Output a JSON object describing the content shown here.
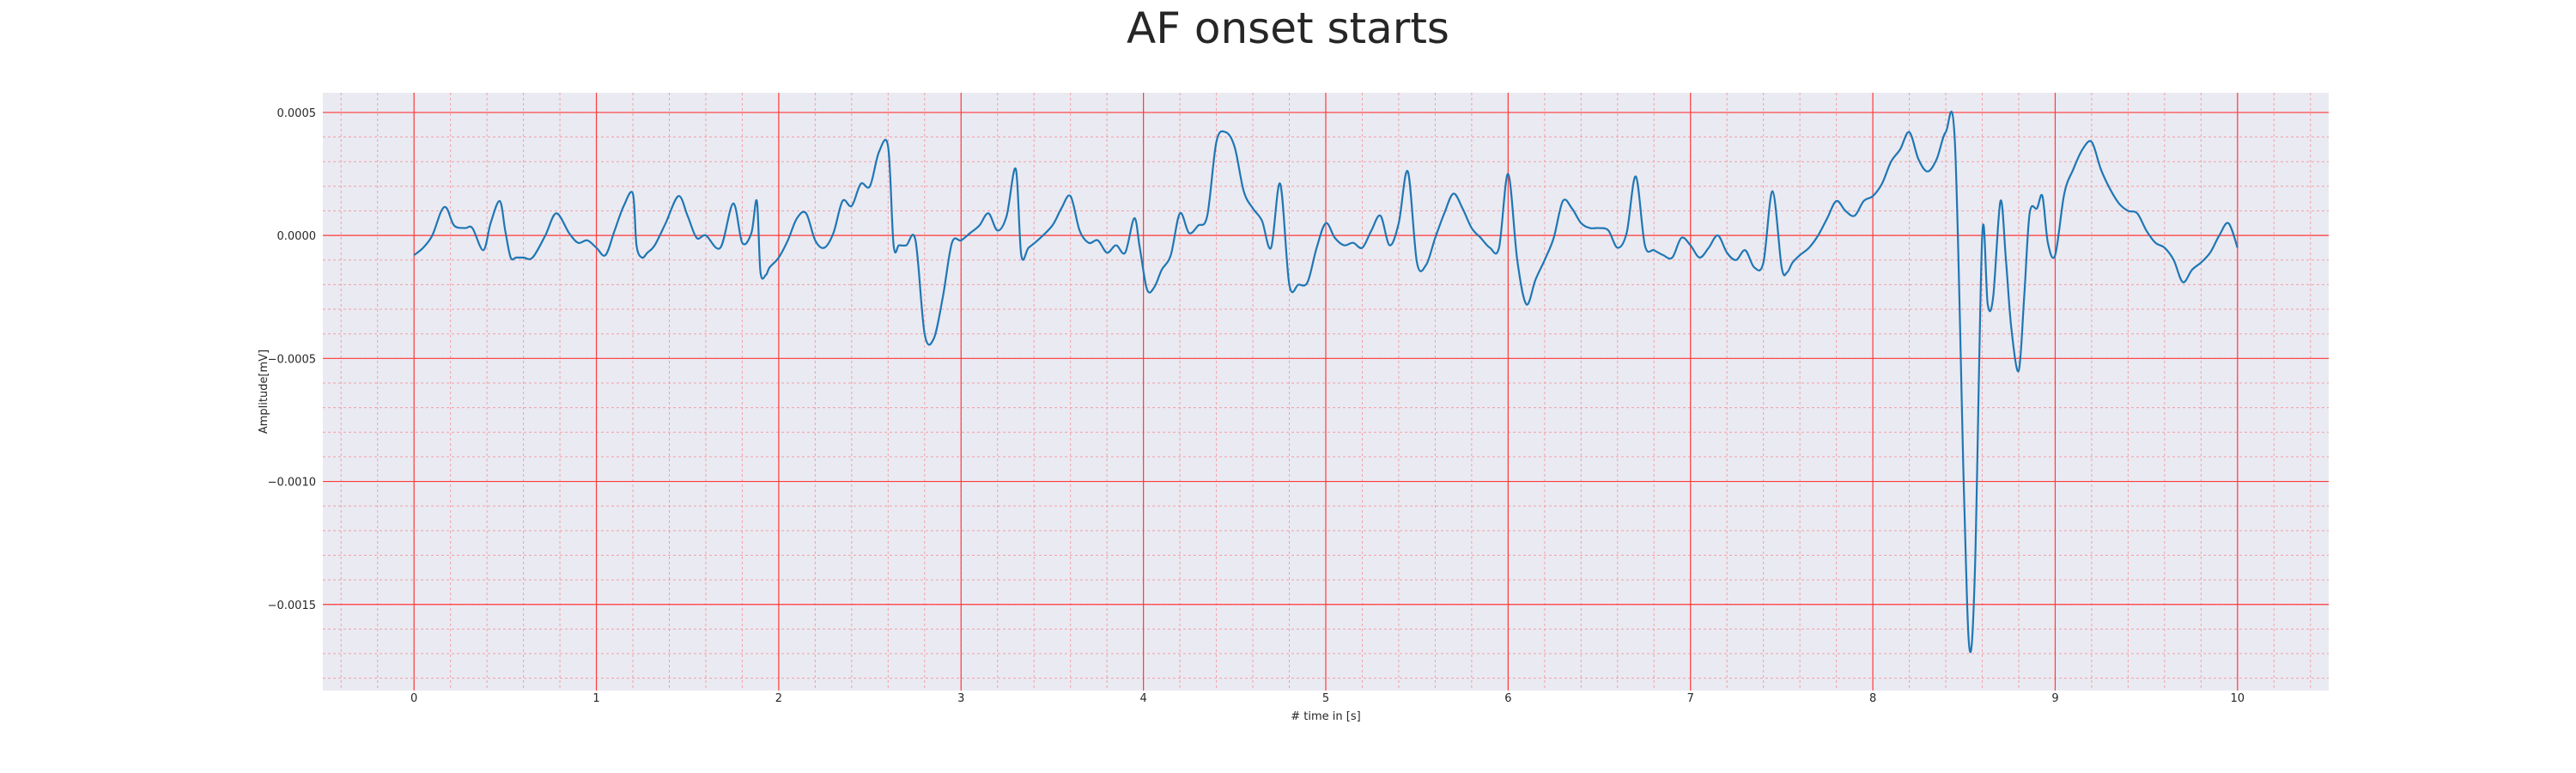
{
  "chart_data": {
    "type": "line",
    "title": "AF onset starts",
    "xlabel": "# time in [s]",
    "ylabel": "Amplitude[mV]",
    "xlim": [
      -0.5,
      10.5
    ],
    "ylim": [
      -0.00185,
      0.00058
    ],
    "x_ticks": [
      0,
      1,
      2,
      3,
      4,
      5,
      6,
      7,
      8,
      9,
      10
    ],
    "x_tick_labels": [
      "0",
      "1",
      "2",
      "3",
      "4",
      "5",
      "6",
      "7",
      "8",
      "9",
      "10"
    ],
    "y_ticks": [
      0.0005,
      0.0,
      -0.0005,
      -0.001,
      -0.0015
    ],
    "y_tick_labels": [
      "0.0005",
      "0.0000",
      "−0.0005",
      "−0.0010",
      "−0.0015"
    ],
    "grid": true,
    "minor_grid": true,
    "colors": {
      "line": "#1f77b4",
      "major_grid": "#ff3b3b",
      "minor_grid": "#f2a0a6",
      "plot_background": "#eaeaf2"
    },
    "series": [
      {
        "x": [
          0.0,
          0.05,
          0.1,
          0.15,
          0.18,
          0.22,
          0.28,
          0.32,
          0.38,
          0.42,
          0.47,
          0.5,
          0.53,
          0.56,
          0.6,
          0.65,
          0.72,
          0.78,
          0.85,
          0.9,
          0.95,
          1.0,
          1.05,
          1.1,
          1.15,
          1.2,
          1.22,
          1.25,
          1.28,
          1.32,
          1.38,
          1.45,
          1.5,
          1.55,
          1.6,
          1.68,
          1.75,
          1.8,
          1.85,
          1.88,
          1.9,
          1.93,
          1.95,
          2.0,
          2.05,
          2.1,
          2.15,
          2.2,
          2.25,
          2.3,
          2.35,
          2.4,
          2.45,
          2.5,
          2.55,
          2.6,
          2.63,
          2.66,
          2.7,
          2.75,
          2.8,
          2.85,
          2.9,
          2.95,
          3.0,
          3.05,
          3.1,
          3.15,
          3.2,
          3.25,
          3.3,
          3.33,
          3.37,
          3.42,
          3.5,
          3.55,
          3.6,
          3.65,
          3.7,
          3.75,
          3.8,
          3.85,
          3.9,
          3.95,
          3.98,
          4.02,
          4.06,
          4.1,
          4.15,
          4.2,
          4.25,
          4.3,
          4.35,
          4.4,
          4.45,
          4.5,
          4.55,
          4.6,
          4.65,
          4.7,
          4.75,
          4.8,
          4.85,
          4.9,
          4.95,
          5.0,
          5.05,
          5.1,
          5.15,
          5.2,
          5.25,
          5.3,
          5.35,
          5.4,
          5.45,
          5.5,
          5.55,
          5.6,
          5.65,
          5.7,
          5.75,
          5.8,
          5.85,
          5.9,
          5.95,
          6.0,
          6.05,
          6.1,
          6.15,
          6.2,
          6.25,
          6.3,
          6.35,
          6.4,
          6.45,
          6.5,
          6.55,
          6.6,
          6.65,
          6.7,
          6.75,
          6.8,
          6.85,
          6.9,
          6.95,
          7.0,
          7.05,
          7.1,
          7.15,
          7.2,
          7.25,
          7.3,
          7.35,
          7.4,
          7.45,
          7.5,
          7.53,
          7.56,
          7.6,
          7.65,
          7.7,
          7.75,
          7.8,
          7.85,
          7.9,
          7.95,
          8.0,
          8.05,
          8.1,
          8.15,
          8.2,
          8.25,
          8.3,
          8.35,
          8.4,
          8.45,
          8.5,
          8.53,
          8.56,
          8.6,
          8.63,
          8.66,
          8.7,
          8.73,
          8.76,
          8.8,
          8.83,
          8.86,
          8.9,
          8.93,
          8.96,
          9.0,
          9.05,
          9.1,
          9.15,
          9.2,
          9.25,
          9.3,
          9.35,
          9.4,
          9.45,
          9.5,
          9.55,
          9.6,
          9.65,
          9.7,
          9.75,
          9.8,
          9.85,
          9.9,
          9.95,
          10.0
        ],
        "y": [
          -8e-05,
          -5e-05,
          0.0,
          0.0001,
          0.00011,
          4e-05,
          3e-05,
          3e-05,
          -6e-05,
          5e-05,
          0.00014,
          2e-05,
          -9e-05,
          -9e-05,
          -9e-05,
          -9e-05,
          0.0,
          9e-05,
          1e-05,
          -3e-05,
          -2e-05,
          -5e-05,
          -8e-05,
          2e-05,
          0.00012,
          0.00017,
          -4e-05,
          -9e-05,
          -7e-05,
          -4e-05,
          5e-05,
          0.00016,
          8e-05,
          -1e-05,
          0.0,
          -5e-05,
          0.00013,
          -3e-05,
          1e-05,
          0.00014,
          -0.00015,
          -0.00016,
          -0.00013,
          -9e-05,
          -2e-05,
          7e-05,
          9e-05,
          -2e-05,
          -5e-05,
          1e-05,
          0.00014,
          0.00012,
          0.00021,
          0.0002,
          0.00034,
          0.00036,
          -4e-05,
          -4e-05,
          -4e-05,
          -2e-05,
          -0.0004,
          -0.00042,
          -0.00025,
          -3e-05,
          -2e-05,
          1e-05,
          4e-05,
          9e-05,
          2e-05,
          8e-05,
          0.00027,
          -8e-05,
          -5e-05,
          -2e-05,
          4e-05,
          0.00011,
          0.00016,
          2e-05,
          -3e-05,
          -2e-05,
          -7e-05,
          -4e-05,
          -7e-05,
          7e-05,
          -5e-05,
          -0.00022,
          -0.00021,
          -0.00014,
          -8e-05,
          9e-05,
          1e-05,
          4e-05,
          8e-05,
          0.00038,
          0.00042,
          0.00036,
          0.00018,
          0.00011,
          6e-05,
          -5e-05,
          0.00021,
          -0.0002,
          -0.0002,
          -0.00019,
          -5e-05,
          5e-05,
          -1e-05,
          -4e-05,
          -3e-05,
          -5e-05,
          2e-05,
          8e-05,
          -4e-05,
          5e-05,
          0.00026,
          -0.00011,
          -0.00012,
          -1e-05,
          9e-05,
          0.00017,
          0.00011,
          3e-05,
          -1e-05,
          -5e-05,
          -5e-05,
          0.00025,
          -0.0001,
          -0.00028,
          -0.00018,
          -0.0001,
          -1e-05,
          0.00014,
          0.00011,
          5e-05,
          3e-05,
          3e-05,
          2e-05,
          -5e-05,
          1e-05,
          0.00024,
          -4e-05,
          -6e-05,
          -8e-05,
          -9e-05,
          -1e-05,
          -4e-05,
          -9e-05,
          -5e-05,
          0.0,
          -7e-05,
          -0.0001,
          -6e-05,
          -0.00013,
          -0.00011,
          0.00018,
          -0.00013,
          -0.00015,
          -0.00011,
          -8e-05,
          -5e-05,
          0.0,
          7e-05,
          0.00014,
          0.0001,
          8e-05,
          0.00014,
          0.00016,
          0.00021,
          0.0003,
          0.00035,
          0.00042,
          0.00031,
          0.00026,
          0.00031,
          0.00042,
          0.00038,
          -0.00105,
          -0.00168,
          -0.00136,
          0.0,
          -0.00028,
          -0.00025,
          0.00014,
          -0.0001,
          -0.00038,
          -0.00055,
          -0.00025,
          9e-05,
          0.00011,
          0.00016,
          -3e-05,
          -8e-05,
          0.00017,
          0.00027,
          0.00035,
          0.00038,
          0.00027,
          0.00019,
          0.00013,
          0.0001,
          9e-05,
          2e-05,
          -3e-05,
          -5e-05,
          -0.0001,
          -0.00019,
          -0.00014,
          -0.00011,
          -7e-05,
          0.0,
          5e-05,
          -5e-05
        ]
      }
    ]
  }
}
